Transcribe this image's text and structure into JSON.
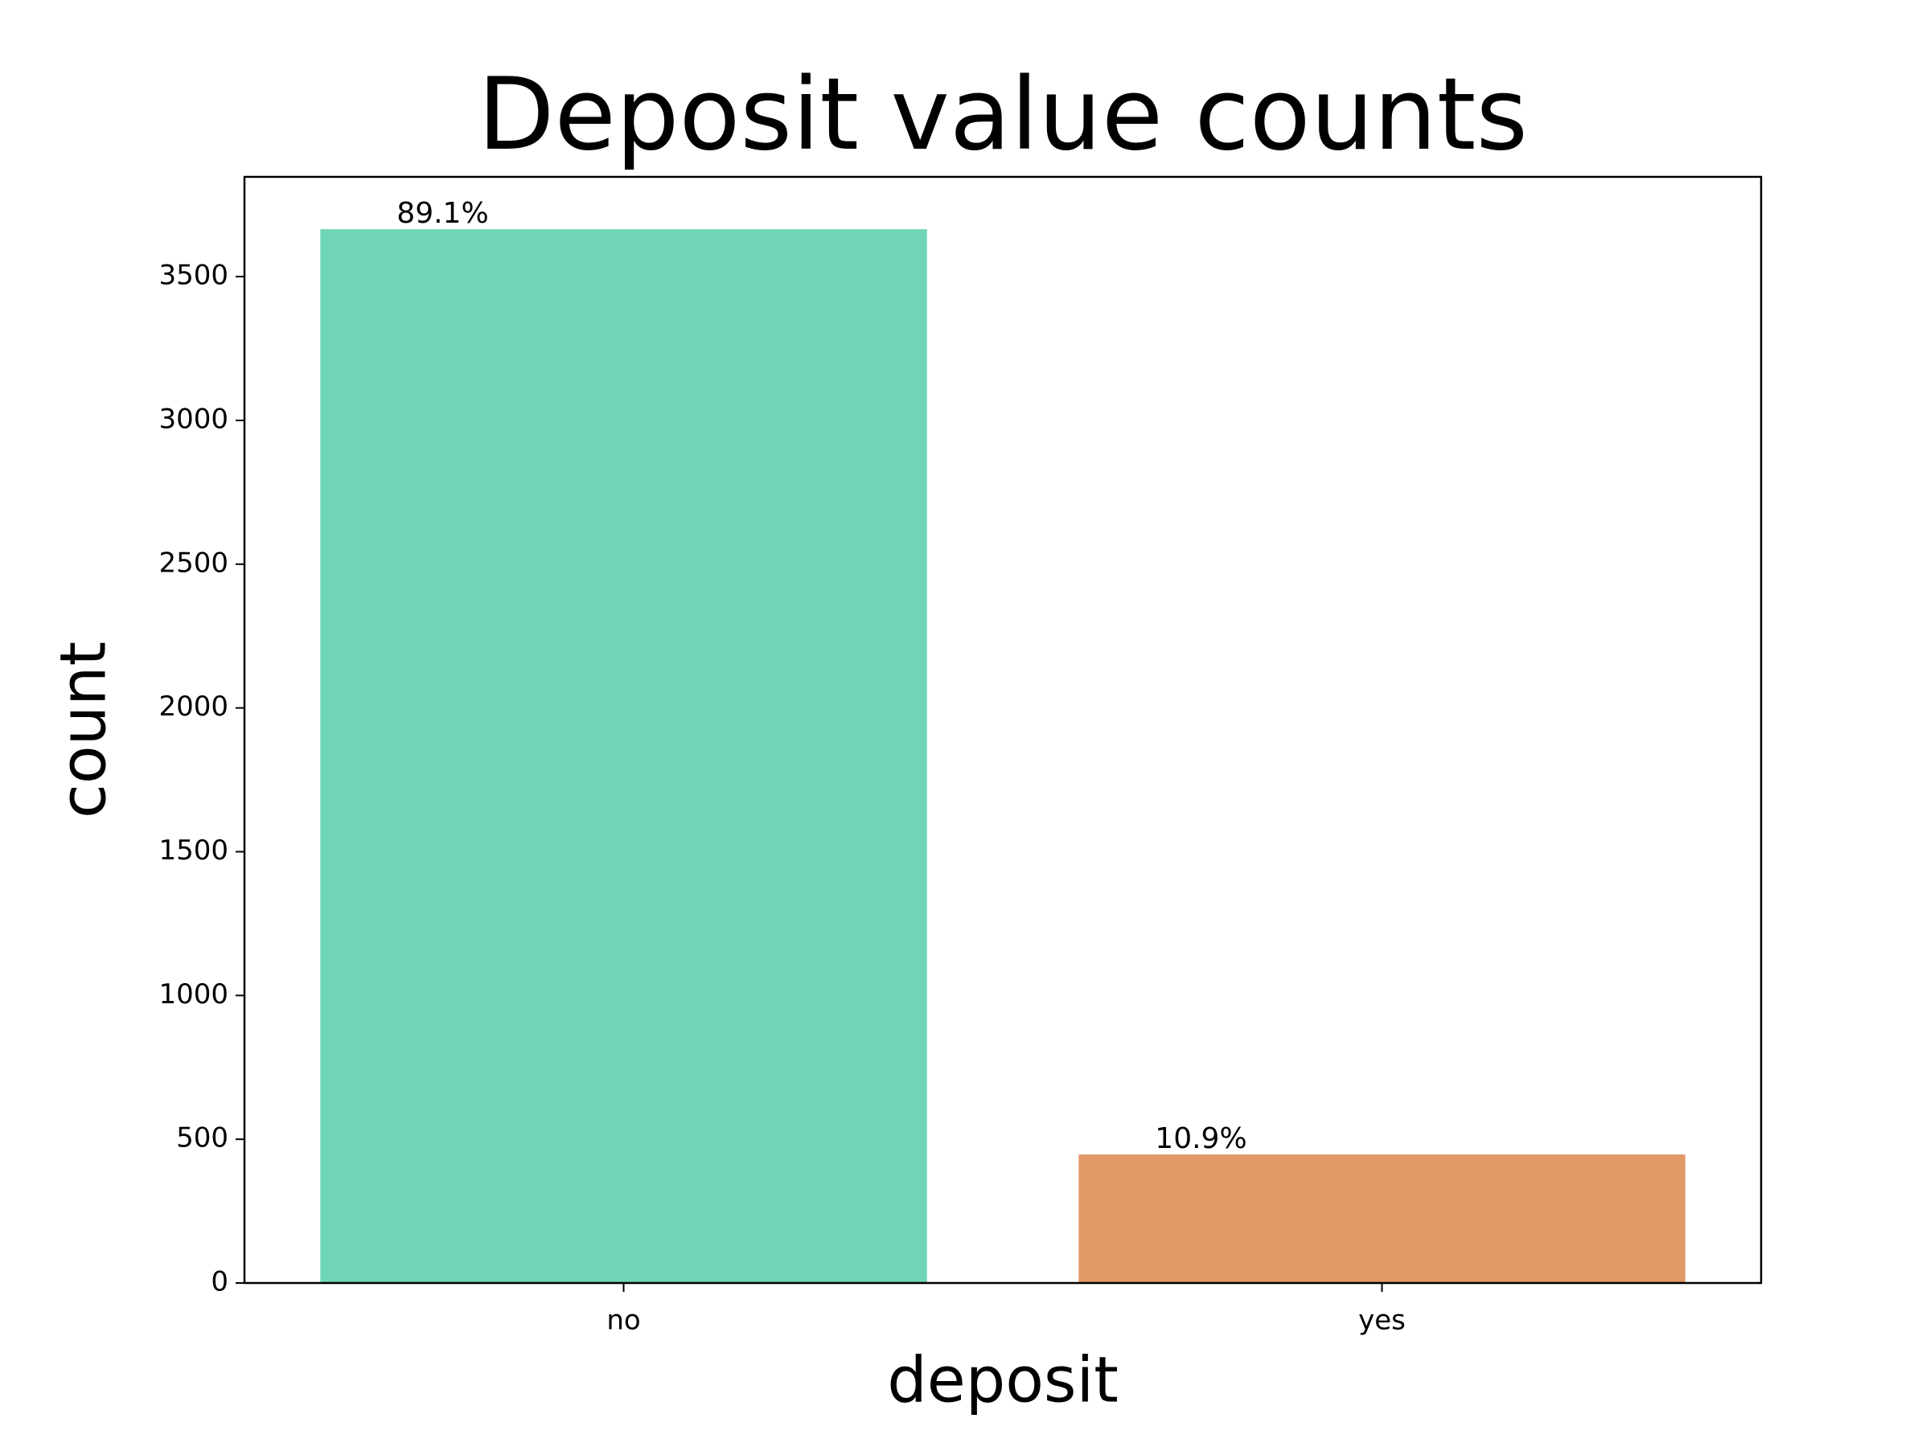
{
  "chart_data": {
    "type": "bar",
    "title": "Deposit value counts",
    "x_label": "deposit",
    "y_label": "count",
    "categories": [
      "no",
      "yes"
    ],
    "values": [
      3665,
      447
    ],
    "annotations": [
      "89.1%",
      "10.9%"
    ],
    "colors": [
      "#70d6b7",
      "#e09866"
    ],
    "ylim": [
      0,
      3847
    ],
    "yticks": [
      0,
      500,
      1000,
      1500,
      2000,
      2500,
      3000,
      3500
    ],
    "grid": false
  }
}
